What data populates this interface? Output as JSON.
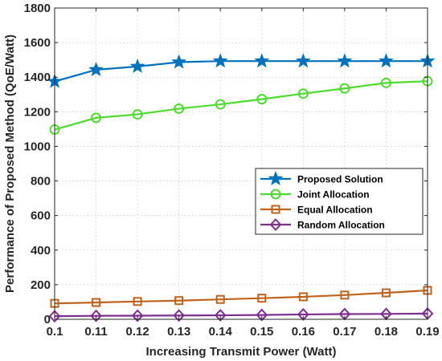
{
  "chart_data": {
    "type": "line",
    "xlabel": "Increasing Transmit Power (Watt)",
    "ylabel": "Performance of Proposed Method (QoE/Watt)",
    "xlim": [
      0.1,
      0.19
    ],
    "ylim": [
      0,
      1800
    ],
    "xticks": [
      "0.1",
      "0.11",
      "0.12",
      "0.13",
      "0.14",
      "0.15",
      "0.16",
      "0.17",
      "0.18",
      "0.19"
    ],
    "yticks": [
      "0",
      "200",
      "400",
      "600",
      "800",
      "1000",
      "1200",
      "1400",
      "1600",
      "1800"
    ],
    "grid": true,
    "legend_position": "right-middle",
    "x": [
      0.1,
      0.11,
      0.12,
      0.13,
      0.14,
      0.15,
      0.16,
      0.17,
      0.18,
      0.19
    ],
    "series": [
      {
        "name": "Proposed Solution",
        "color": "#0072BD",
        "marker": "star",
        "values": [
          1375,
          1443,
          1462,
          1487,
          1493,
          1493,
          1493,
          1493,
          1493,
          1493
        ]
      },
      {
        "name": "Joint Allocation",
        "color": "#4DDB2E",
        "marker": "circle",
        "values": [
          1097,
          1165,
          1185,
          1218,
          1243,
          1273,
          1305,
          1335,
          1367,
          1377
        ]
      },
      {
        "name": "Equal Allocation",
        "color": "#C0621C",
        "marker": "square",
        "values": [
          92,
          97,
          103,
          108,
          115,
          122,
          130,
          140,
          153,
          167
        ]
      },
      {
        "name": "Random Allocation",
        "color": "#7E2F8E",
        "marker": "diamond",
        "values": [
          18,
          20,
          21,
          22,
          23,
          25,
          28,
          30,
          31,
          33
        ]
      }
    ]
  }
}
